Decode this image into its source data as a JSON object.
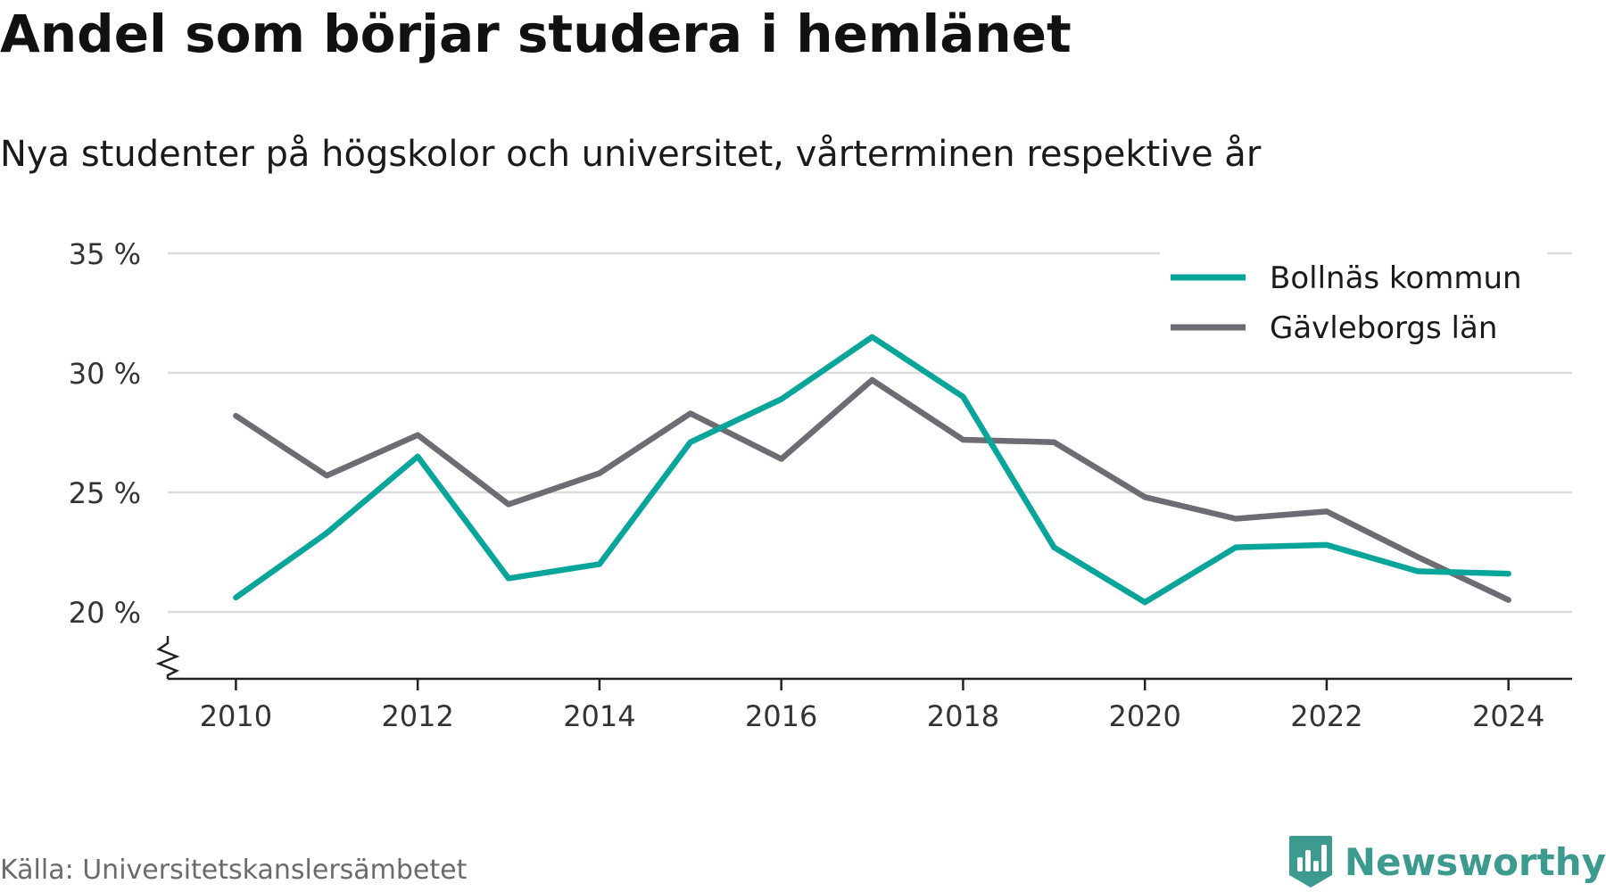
{
  "title": "Andel som börjar studera i hemlänet",
  "subtitle": "Nya studenter på högskolor och universitet, vårterminen respektive år",
  "source": "Källa: Universitetskanslersämbetet",
  "brand": {
    "name": "Newsworthy",
    "icon": "newsworthy-logo-icon",
    "color": "#3d9a8f"
  },
  "chart_data": {
    "type": "line",
    "x": [
      2010,
      2011,
      2012,
      2013,
      2014,
      2015,
      2016,
      2017,
      2018,
      2019,
      2020,
      2021,
      2022,
      2023,
      2024
    ],
    "x_ticks": [
      2010,
      2012,
      2014,
      2016,
      2018,
      2020,
      2022,
      2024
    ],
    "x_tick_labels": [
      "2010",
      "2012",
      "2014",
      "2016",
      "2018",
      "2020",
      "2022",
      "2024"
    ],
    "xlim": [
      2009.25,
      2024.7
    ],
    "y_ticks": [
      20,
      25,
      30,
      35
    ],
    "y_tick_labels": [
      "20 %",
      "25 %",
      "30 %",
      "35 %"
    ],
    "ylim": [
      17.2,
      35
    ],
    "y_axis_break": true,
    "grid": true,
    "legend_position": "top-right",
    "series": [
      {
        "name": "Bollnäs kommun",
        "color": "#0aa59a",
        "values": [
          20.6,
          23.3,
          26.5,
          21.4,
          22.0,
          27.1,
          28.9,
          31.5,
          29.0,
          22.7,
          20.4,
          22.7,
          22.8,
          21.7,
          21.6
        ]
      },
      {
        "name": "Gävleborgs län",
        "color": "#6d6c72",
        "values": [
          28.2,
          25.7,
          27.4,
          24.5,
          25.8,
          28.3,
          26.4,
          29.7,
          27.2,
          27.1,
          24.8,
          23.9,
          24.2,
          22.3,
          20.5
        ]
      }
    ]
  }
}
